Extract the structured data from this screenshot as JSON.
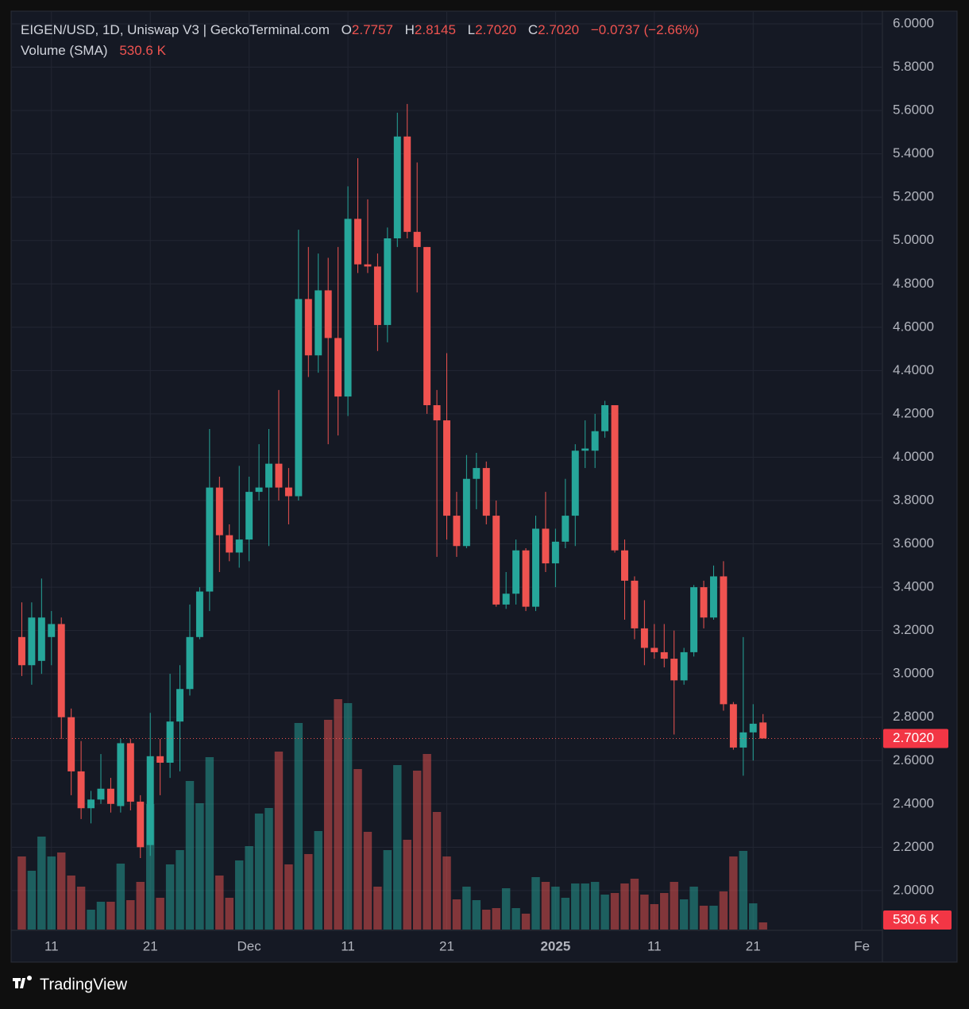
{
  "header": {
    "symbol": "EIGEN/USD, 1D, Uniswap V3 | GeckoTerminal.com",
    "o_label": "O",
    "o": "2.7757",
    "h_label": "H",
    "h": "2.8145",
    "l_label": "L",
    "l": "2.7020",
    "c_label": "C",
    "c": "2.7020",
    "change": "−0.0737 (−2.66%)",
    "volume_label": "Volume (SMA)",
    "volume": "530.6 K"
  },
  "footer": {
    "brand": "TradingView"
  },
  "chart_data": {
    "type": "candlestick",
    "x": [
      "2024-11-08",
      "2024-11-09",
      "2024-11-10",
      "2024-11-11",
      "2024-11-12",
      "2024-11-13",
      "2024-11-14",
      "2024-11-15",
      "2024-11-16",
      "2024-11-17",
      "2024-11-18",
      "2024-11-19",
      "2024-11-20",
      "2024-11-21",
      "2024-11-22",
      "2024-11-23",
      "2024-11-24",
      "2024-11-25",
      "2024-11-26",
      "2024-11-27",
      "2024-11-28",
      "2024-11-29",
      "2024-11-30",
      "2024-12-01",
      "2024-12-02",
      "2024-12-03",
      "2024-12-04",
      "2024-12-05",
      "2024-12-06",
      "2024-12-07",
      "2024-12-08",
      "2024-12-09",
      "2024-12-10",
      "2024-12-11",
      "2024-12-12",
      "2024-12-13",
      "2024-12-14",
      "2024-12-15",
      "2024-12-16",
      "2024-12-17",
      "2024-12-18",
      "2024-12-19",
      "2024-12-20",
      "2024-12-21",
      "2024-12-22",
      "2024-12-23",
      "2024-12-24",
      "2024-12-25",
      "2024-12-26",
      "2024-12-27",
      "2024-12-28",
      "2024-12-29",
      "2024-12-30",
      "2024-12-31",
      "2025-01-01",
      "2025-01-02",
      "2025-01-03",
      "2025-01-04",
      "2025-01-05",
      "2025-01-06",
      "2025-01-07",
      "2025-01-08",
      "2025-01-09",
      "2025-01-10",
      "2025-01-11",
      "2025-01-12",
      "2025-01-13",
      "2025-01-14",
      "2025-01-15",
      "2025-01-16",
      "2025-01-17",
      "2025-01-18",
      "2025-01-19",
      "2025-01-20",
      "2025-01-21",
      "2025-01-22"
    ],
    "open": [
      3.17,
      3.04,
      3.06,
      3.17,
      3.23,
      2.8,
      2.55,
      2.38,
      2.42,
      2.47,
      2.39,
      2.68,
      2.41,
      2.21,
      2.62,
      2.59,
      2.78,
      2.93,
      3.17,
      3.38,
      3.86,
      3.64,
      3.56,
      3.62,
      3.84,
      3.86,
      3.97,
      3.86,
      3.82,
      4.73,
      4.47,
      4.77,
      4.55,
      4.28,
      5.1,
      4.89,
      4.88,
      4.61,
      5.01,
      5.48,
      5.04,
      4.97,
      4.24,
      4.17,
      3.73,
      3.59,
      3.9,
      3.95,
      3.73,
      3.32,
      3.37,
      3.57,
      3.31,
      3.67,
      3.51,
      3.61,
      3.73,
      4.03,
      4.03,
      4.12,
      4.24,
      3.57,
      3.43,
      3.21,
      3.12,
      3.1,
      3.07,
      2.97,
      3.1,
      3.4,
      3.26,
      3.45,
      2.86,
      2.66,
      2.73,
      2.7757
    ],
    "high": [
      3.33,
      3.33,
      3.44,
      3.29,
      3.26,
      2.84,
      2.69,
      2.46,
      2.63,
      2.52,
      2.7,
      2.7,
      2.44,
      2.82,
      2.7,
      3.0,
      3.04,
      3.32,
      3.4,
      4.13,
      3.91,
      3.69,
      3.96,
      3.91,
      4.06,
      4.13,
      4.31,
      3.95,
      5.05,
      4.97,
      4.94,
      4.92,
      4.97,
      5.25,
      5.38,
      5.19,
      4.94,
      5.06,
      5.59,
      5.63,
      5.36,
      4.97,
      4.31,
      4.48,
      3.84,
      4.01,
      4.02,
      3.98,
      3.8,
      3.47,
      3.62,
      3.58,
      3.73,
      3.84,
      3.67,
      3.9,
      4.06,
      4.17,
      4.2,
      4.26,
      4.24,
      3.62,
      3.45,
      3.34,
      3.23,
      3.23,
      3.2,
      3.12,
      3.41,
      3.43,
      3.5,
      3.52,
      2.87,
      3.17,
      2.86,
      2.8145
    ],
    "low": [
      2.99,
      2.95,
      3.0,
      3.04,
      2.7,
      2.44,
      2.33,
      2.31,
      2.4,
      2.36,
      2.36,
      2.37,
      2.15,
      2.16,
      2.44,
      2.52,
      2.55,
      2.9,
      3.16,
      3.29,
      3.47,
      3.52,
      3.49,
      3.52,
      3.8,
      3.59,
      3.8,
      3.69,
      3.8,
      4.37,
      4.39,
      4.06,
      4.1,
      4.19,
      4.85,
      4.85,
      4.49,
      4.53,
      4.97,
      5.01,
      4.76,
      4.2,
      3.54,
      3.62,
      3.54,
      3.58,
      3.76,
      3.69,
      3.31,
      3.3,
      3.32,
      3.29,
      3.29,
      3.47,
      3.4,
      3.58,
      3.59,
      3.95,
      3.95,
      4.09,
      3.56,
      3.25,
      3.16,
      3.04,
      3.07,
      3.03,
      2.72,
      2.95,
      3.08,
      3.21,
      3.25,
      2.83,
      2.65,
      2.53,
      2.6,
      2.702
    ],
    "close": [
      3.04,
      3.26,
      3.26,
      3.23,
      2.8,
      2.55,
      2.38,
      2.42,
      2.47,
      2.4,
      2.68,
      2.41,
      2.2,
      2.62,
      2.59,
      2.78,
      2.93,
      3.17,
      3.38,
      3.86,
      3.64,
      3.56,
      3.62,
      3.84,
      3.86,
      3.97,
      3.86,
      3.82,
      4.73,
      4.47,
      4.77,
      4.55,
      4.28,
      5.1,
      4.89,
      4.88,
      4.61,
      5.01,
      5.48,
      5.04,
      4.97,
      4.24,
      4.17,
      3.73,
      3.59,
      3.9,
      3.95,
      3.73,
      3.32,
      3.37,
      3.57,
      3.31,
      3.67,
      3.51,
      3.61,
      3.73,
      4.03,
      4.04,
      4.12,
      4.24,
      3.57,
      3.43,
      3.21,
      3.12,
      3.1,
      3.07,
      2.97,
      3.1,
      3.4,
      3.26,
      3.45,
      2.86,
      2.66,
      2.73,
      2.77,
      2.702
    ],
    "volume": [
      5428000,
      4366000,
      6903000,
      5428000,
      5723000,
      4012000,
      3186000,
      1475000,
      2065000,
      2065000,
      4897000,
      2183000,
      3540000,
      9322000,
      2360000,
      4838000,
      5900000,
      11033000,
      9381000,
      12803000,
      4012000,
      2360000,
      5133000,
      6195000,
      8614000,
      9027000,
      13216000,
      4838000,
      15340000,
      5605000,
      7316000,
      15576000,
      17110000,
      16815000,
      11918000,
      7257000,
      3186000,
      5900000,
      12213000,
      6667000,
      11800000,
      13039000,
      8732000,
      5428000,
      2242000,
      3186000,
      2183000,
      1475000,
      1593000,
      3068000,
      1593000,
      1180000,
      3894000,
      3540000,
      3186000,
      2360000,
      3422000,
      3422000,
      3540000,
      2596000,
      2714000,
      3422000,
      3776000,
      2596000,
      1888000,
      2714000,
      3540000,
      2242000,
      3186000,
      1770000,
      1770000,
      2832000,
      5428000,
      5841000,
      1947000,
      530600
    ],
    "up_color": "#26a69a",
    "down_color": "#ef5350",
    "xlim": [
      "2024-11-07",
      "2025-02-03"
    ],
    "xticks": [
      {
        "value": "2024-11-11",
        "label": "11"
      },
      {
        "value": "2024-11-21",
        "label": "21"
      },
      {
        "value": "2024-12-01",
        "label": "Dec"
      },
      {
        "value": "2024-12-11",
        "label": "11"
      },
      {
        "value": "2024-12-21",
        "label": "21"
      },
      {
        "value": "2025-01-01",
        "label": "2025"
      },
      {
        "value": "2025-01-11",
        "label": "11"
      },
      {
        "value": "2025-01-21",
        "label": "21"
      },
      {
        "value": "2025-02-01",
        "label": "Fe"
      }
    ],
    "ylim": [
      1.82,
      6.055
    ],
    "yticks": [
      {
        "value": 2,
        "label": "2.0000"
      },
      {
        "value": 2.2,
        "label": "2.2000"
      },
      {
        "value": 2.4,
        "label": "2.4000"
      },
      {
        "value": 2.6,
        "label": "2.6000"
      },
      {
        "value": 2.8,
        "label": "2.8000"
      },
      {
        "value": 3,
        "label": "3.0000"
      },
      {
        "value": 3.2,
        "label": "3.2000"
      },
      {
        "value": 3.4,
        "label": "3.4000"
      },
      {
        "value": 3.6,
        "label": "3.6000"
      },
      {
        "value": 3.8,
        "label": "3.8000"
      },
      {
        "value": 4,
        "label": "4.0000"
      },
      {
        "value": 4.2,
        "label": "4.2000"
      },
      {
        "value": 4.4,
        "label": "4.4000"
      },
      {
        "value": 4.6,
        "label": "4.6000"
      },
      {
        "value": 4.8,
        "label": "4.8000"
      },
      {
        "value": 5,
        "label": "5.0000"
      },
      {
        "value": 5.2,
        "label": "5.2000"
      },
      {
        "value": 5.4,
        "label": "5.4000"
      },
      {
        "value": 5.6,
        "label": "5.6000"
      },
      {
        "value": 5.8,
        "label": "5.8000"
      },
      {
        "value": 6,
        "label": "6.0000"
      }
    ],
    "grid": true
  }
}
